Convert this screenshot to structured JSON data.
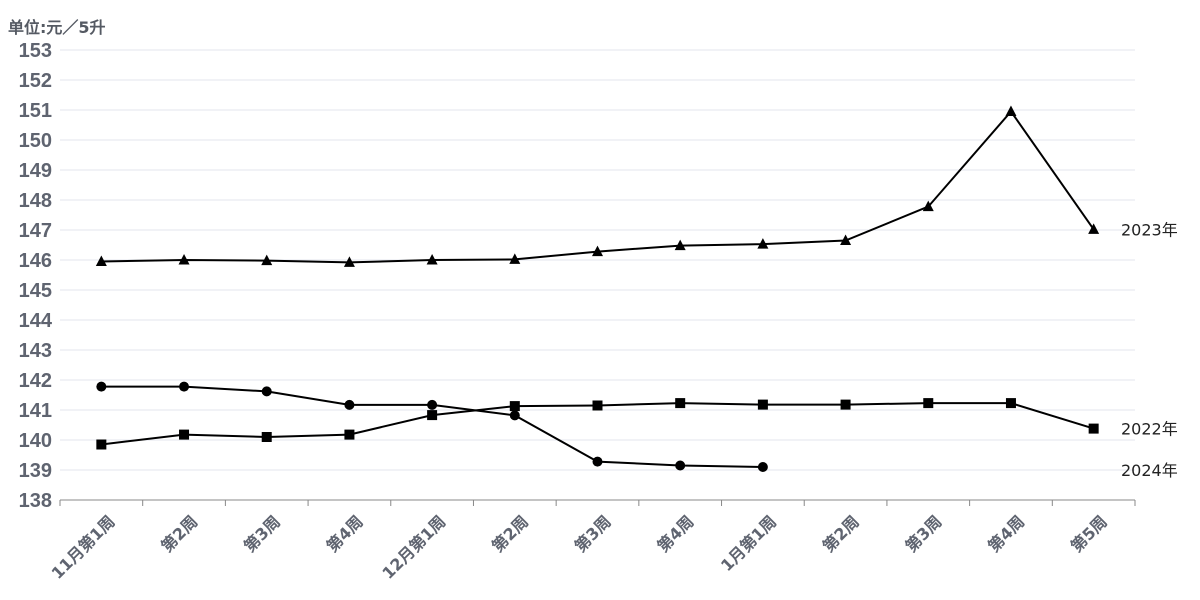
{
  "chart_data": {
    "type": "line",
    "unit_label": "单位:元／5升",
    "ylim": [
      138,
      153
    ],
    "yticks": [
      138,
      139,
      140,
      141,
      142,
      143,
      144,
      145,
      146,
      147,
      148,
      149,
      150,
      151,
      152,
      153
    ],
    "categories": [
      "11月第1周",
      "第2周",
      "第3周",
      "第4周",
      "12月第1周",
      "第2周",
      "第3周",
      "第4周",
      "1月第1周",
      "第2周",
      "第3周",
      "第4周",
      "第5周"
    ],
    "grid": true,
    "series": [
      {
        "name": "2023年",
        "marker": "triangle",
        "color": "#000000",
        "values": [
          145.95,
          146.0,
          145.98,
          145.92,
          146.0,
          146.02,
          146.28,
          146.48,
          146.53,
          146.65,
          147.78,
          150.95,
          147.02
        ]
      },
      {
        "name": "2022年",
        "marker": "square",
        "color": "#000000",
        "values": [
          139.85,
          140.18,
          140.1,
          140.18,
          140.83,
          141.13,
          141.15,
          141.23,
          141.18,
          141.18,
          141.23,
          141.23,
          140.38
        ]
      },
      {
        "name": "2024年",
        "marker": "circle",
        "color": "#000000",
        "values": [
          141.78,
          141.78,
          141.62,
          141.17,
          141.17,
          140.82,
          139.28,
          139.15,
          139.1,
          null,
          null,
          null,
          null
        ]
      }
    ]
  }
}
